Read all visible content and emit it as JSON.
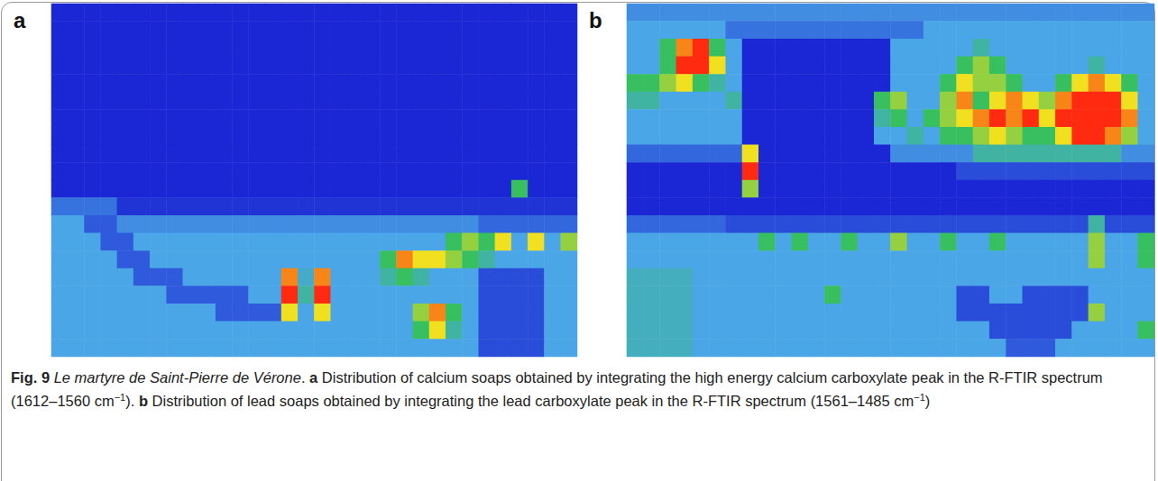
{
  "chart_data": [
    {
      "type": "heatmap",
      "panel": "a",
      "label": "Calcium carboxylates",
      "tick_labels": false,
      "zlim": [
        0,
        4
      ],
      "colors": [
        "#1b27d4",
        "#4aa6e6",
        "#38c060",
        "#f0e020",
        "#ff2a10"
      ],
      "cells": [
        [
          0,
          0,
          0,
          0,
          0,
          0,
          0,
          0,
          0,
          0,
          0,
          0,
          0,
          0,
          0,
          0,
          0,
          0,
          0,
          0,
          0,
          0,
          0,
          0,
          0,
          0,
          0,
          0,
          0,
          0,
          0,
          0
        ],
        [
          0,
          0,
          0,
          0,
          0,
          0,
          0,
          0,
          0,
          0,
          0,
          0,
          0,
          0,
          0,
          0,
          0,
          0,
          0,
          0,
          0,
          0,
          0,
          0,
          0,
          0,
          0,
          0,
          0,
          0,
          0,
          0
        ],
        [
          0,
          0,
          0,
          0,
          0,
          0,
          0,
          0,
          0,
          0,
          0,
          0,
          0,
          0,
          0,
          0,
          0,
          0,
          0,
          0,
          0,
          0,
          0,
          0,
          0,
          0,
          0,
          0,
          0,
          0,
          0,
          0
        ],
        [
          0,
          0,
          0,
          0,
          0,
          0,
          0,
          0,
          0,
          0,
          0,
          0,
          0,
          0,
          0,
          0,
          0,
          0,
          0,
          0,
          0,
          0,
          0,
          0,
          0,
          0,
          0,
          0,
          0,
          0,
          0,
          0
        ],
        [
          0,
          0,
          0,
          0,
          0,
          0,
          0,
          0,
          0,
          0,
          0,
          0,
          0,
          0,
          0,
          0,
          0,
          0,
          0,
          0,
          0,
          0,
          0,
          0,
          0,
          0,
          0,
          0,
          0,
          0,
          0,
          0
        ],
        [
          0,
          0,
          0,
          0,
          0,
          0,
          0,
          0,
          0,
          0,
          0,
          0,
          0,
          0,
          0,
          0,
          0,
          0,
          0,
          0,
          0,
          0,
          0,
          0,
          0,
          0,
          0,
          0,
          0,
          0,
          0,
          0
        ],
        [
          0,
          0,
          0,
          0,
          0,
          0,
          0,
          0,
          0,
          0,
          0,
          0,
          0,
          0,
          0,
          0,
          0,
          0,
          0,
          0,
          0,
          0,
          0,
          0,
          0,
          0,
          0,
          0,
          0,
          0,
          0,
          0
        ],
        [
          0,
          0,
          0,
          0,
          0,
          0,
          0,
          0,
          0,
          0,
          0,
          0,
          0,
          0,
          0,
          0,
          0,
          0,
          0,
          0,
          0,
          0,
          0,
          0,
          0,
          0,
          0,
          0,
          0,
          0,
          0,
          0
        ],
        [
          0,
          0,
          0,
          0,
          0,
          0,
          0,
          0,
          0,
          0,
          0,
          0,
          0,
          0,
          0,
          0,
          0,
          0,
          0,
          0,
          0,
          0,
          0,
          0,
          0,
          0,
          0,
          0,
          0,
          0,
          0,
          0
        ],
        [
          0,
          0,
          0,
          0,
          0,
          0,
          0,
          0,
          0,
          0,
          0,
          0,
          0,
          0,
          0,
          0,
          0,
          0,
          0,
          0,
          0,
          0,
          0,
          0,
          0,
          0,
          0,
          0,
          0,
          0,
          0,
          0
        ],
        [
          0,
          0,
          0,
          0,
          0,
          0,
          0,
          0,
          0,
          0,
          0,
          0,
          0,
          0,
          0,
          0,
          0,
          0,
          0,
          0,
          0,
          0,
          0,
          0,
          0,
          0,
          0,
          0,
          2,
          0,
          0,
          0
        ],
        [
          0.6,
          0.6,
          0.6,
          0.6,
          0.1,
          0.1,
          0.1,
          0.1,
          0.1,
          0.1,
          0.1,
          0.1,
          0.1,
          0.1,
          0.1,
          0.1,
          0.1,
          0.1,
          0.1,
          0.1,
          0.1,
          0.1,
          0.1,
          0.1,
          0.1,
          0.1,
          0.1,
          0.1,
          0.1,
          0.1,
          0.1,
          0.1
        ],
        [
          1,
          1,
          0.4,
          0.4,
          0.8,
          0.8,
          0.8,
          0.8,
          0.8,
          0.8,
          0.8,
          0.8,
          0.8,
          0.8,
          0.8,
          0.8,
          0.8,
          0.8,
          0.8,
          0.8,
          0.8,
          0.8,
          0.8,
          0.8,
          0.8,
          0.8,
          0.5,
          0.5,
          0.5,
          0.5,
          0.5,
          0.5
        ],
        [
          1,
          1,
          1,
          0.4,
          0.4,
          1,
          1,
          1,
          1,
          1,
          1,
          1,
          1,
          1,
          1,
          1,
          1,
          1,
          1,
          1,
          1,
          1,
          1,
          1,
          2,
          2.5,
          2,
          3,
          1,
          3,
          1,
          2.5
        ],
        [
          1,
          1,
          1,
          1,
          0.4,
          0.4,
          1,
          1,
          1,
          1,
          1,
          1,
          1,
          1,
          1,
          1,
          1,
          1,
          1,
          1,
          2,
          3.5,
          3,
          3,
          2.5,
          2,
          1.5,
          1,
          1,
          1,
          1,
          1
        ],
        [
          1,
          1,
          1,
          1,
          1,
          0.4,
          0.4,
          0.4,
          1,
          1,
          1,
          1,
          1,
          1,
          3.5,
          1.2,
          3.5,
          1,
          1,
          1,
          1.5,
          2,
          1.5,
          1,
          1,
          1,
          0.3,
          0.3,
          0.3,
          0.3,
          1,
          1
        ],
        [
          1,
          1,
          1,
          1,
          1,
          1,
          1,
          0.4,
          0.4,
          0.4,
          0.4,
          0.4,
          1,
          1,
          4,
          1.5,
          4,
          1,
          1,
          1,
          1,
          1,
          1,
          1,
          1,
          1,
          0.3,
          0.3,
          0.3,
          0.3,
          1,
          1
        ],
        [
          1,
          1,
          1,
          1,
          1,
          1,
          1,
          1,
          1,
          1,
          0.4,
          0.4,
          0.4,
          0.4,
          3,
          1,
          3,
          1,
          1,
          1,
          1,
          1,
          2.5,
          3.5,
          2,
          1,
          0.3,
          0.3,
          0.3,
          0.3,
          1,
          1
        ],
        [
          1,
          1,
          1,
          1,
          1,
          1,
          1,
          1,
          1,
          1,
          1,
          1,
          1,
          1,
          1,
          1,
          1,
          1,
          1,
          1,
          1,
          1,
          2,
          3,
          1.5,
          1,
          0.3,
          0.3,
          0.3,
          0.3,
          1,
          1
        ],
        [
          1,
          1,
          1,
          1,
          1,
          1,
          1,
          1,
          1,
          1,
          1,
          1,
          1,
          1,
          1,
          1,
          1,
          1,
          1,
          1,
          1,
          1,
          1,
          1,
          1,
          1,
          0.3,
          0.3,
          0.3,
          0.3,
          1,
          1
        ]
      ]
    },
    {
      "type": "heatmap",
      "panel": "b",
      "label": "Lead carboxylates",
      "tick_labels": false,
      "zlim": [
        0,
        4
      ],
      "colors": [
        "#1b27d4",
        "#4aa6e6",
        "#38c060",
        "#f0e020",
        "#ff2a10"
      ],
      "cells": [
        [
          0.8,
          0.8,
          0.8,
          0.8,
          0.8,
          0.8,
          0.8,
          0.8,
          0.8,
          0.8,
          0.8,
          0.8,
          0.8,
          0.8,
          0.8,
          0.8,
          0.8,
          0.8,
          0.8,
          0.8,
          0.8,
          0.8,
          0.8,
          0.8,
          0.8,
          0.8,
          0.8,
          0.8,
          0.8,
          0.8,
          0.8,
          0.8
        ],
        [
          1,
          1,
          1,
          1,
          1,
          1,
          0.6,
          0.6,
          0.6,
          0.6,
          0.6,
          0.6,
          0.6,
          0.6,
          0.6,
          0.6,
          0.6,
          0.6,
          1,
          1,
          1,
          1,
          1,
          1,
          1,
          1,
          1,
          1,
          1,
          1,
          1,
          1
        ],
        [
          1,
          1,
          2,
          3.5,
          4,
          2,
          1,
          0,
          0,
          0,
          0,
          0,
          0,
          0,
          0,
          0,
          1,
          1,
          1,
          1,
          1,
          1.5,
          1,
          1,
          1,
          1,
          1,
          1,
          1,
          1,
          1,
          1
        ],
        [
          1,
          1,
          2,
          4,
          4,
          3,
          1,
          0,
          0,
          0,
          0,
          0,
          0,
          0,
          0,
          0,
          1,
          1,
          1,
          1,
          2,
          2.5,
          2,
          1,
          1,
          1,
          1,
          1,
          1.5,
          1,
          1,
          1
        ],
        [
          2,
          2,
          2.5,
          3,
          2,
          1.5,
          1,
          0,
          0,
          0,
          0,
          0,
          0,
          0,
          0,
          0,
          1,
          1,
          1,
          2,
          3,
          2.5,
          2.5,
          2,
          1,
          1,
          2,
          3,
          3.5,
          3,
          2,
          1
        ],
        [
          1.5,
          1.5,
          1,
          1,
          1,
          1,
          1.5,
          0,
          0,
          0,
          0,
          0,
          0,
          0,
          0,
          2,
          2.5,
          1,
          1,
          2.5,
          3.5,
          2,
          3,
          3.5,
          3,
          2.5,
          3.5,
          4,
          4,
          4,
          3,
          1
        ],
        [
          1,
          1,
          1,
          1,
          1,
          1,
          1,
          0,
          0,
          0,
          0,
          0,
          0,
          0,
          0,
          1.5,
          2,
          1,
          2,
          2.5,
          3,
          3.5,
          4,
          3.5,
          4,
          3,
          4,
          4,
          4,
          4,
          3.5,
          1
        ],
        [
          1,
          1,
          1,
          1,
          1,
          1,
          1,
          0,
          0,
          0,
          0,
          0,
          0,
          0,
          0,
          1,
          1,
          1.5,
          1,
          2,
          2,
          2.5,
          3,
          2.5,
          2,
          2,
          3,
          4,
          4,
          3.5,
          2.5,
          1
        ],
        [
          0.5,
          0.5,
          0.5,
          0.5,
          0.5,
          0.5,
          0.5,
          3,
          0,
          0,
          0,
          0,
          0,
          0,
          0,
          0,
          0.8,
          0.8,
          0.8,
          0.8,
          0.8,
          1.5,
          1.5,
          1.5,
          1.5,
          1.5,
          1.5,
          1.5,
          1.5,
          1.5,
          0.8,
          0.8
        ],
        [
          0,
          0,
          0,
          0,
          0,
          0,
          0,
          4,
          0,
          0,
          0,
          0,
          0,
          0,
          0,
          0,
          0,
          0,
          0,
          0,
          0.3,
          0.3,
          0.3,
          0.3,
          0.3,
          0.3,
          0.3,
          0.3,
          0.3,
          0.3,
          0.3,
          0.3
        ],
        [
          0,
          0,
          0,
          0,
          0,
          0,
          0,
          2.5,
          0,
          0,
          0,
          0,
          0,
          0,
          0,
          0,
          0,
          0,
          0,
          0,
          0,
          0,
          0,
          0,
          0,
          0,
          0,
          0,
          0,
          0,
          0,
          0
        ],
        [
          0,
          0,
          0,
          0,
          0,
          0,
          0,
          0,
          0,
          0,
          0,
          0,
          0,
          0,
          0,
          0,
          0,
          0,
          0,
          0,
          0,
          0,
          0,
          0,
          0,
          0,
          0,
          0,
          0,
          0,
          0,
          0
        ],
        [
          0.5,
          0.5,
          0.5,
          0.5,
          0.5,
          0.5,
          0.3,
          0.3,
          0.3,
          0.3,
          0.3,
          0.3,
          0.3,
          0.3,
          0.3,
          0.3,
          0.3,
          0.3,
          0.3,
          0.3,
          0.3,
          0.3,
          0.3,
          0.3,
          0.3,
          0.3,
          0.3,
          0.3,
          1.5,
          0.3,
          0.3,
          0.3
        ],
        [
          1,
          1,
          1,
          1,
          1,
          1,
          1,
          1,
          2,
          1,
          2,
          1,
          1,
          2,
          1,
          1,
          2.5,
          1,
          1,
          2,
          1,
          1,
          2,
          1,
          1,
          1,
          1,
          1,
          2.5,
          1,
          1,
          2
        ],
        [
          1,
          1,
          1,
          1,
          1,
          1,
          1,
          1,
          1,
          1,
          1,
          1,
          1,
          1,
          1,
          1,
          1,
          1,
          1,
          1,
          1,
          1,
          1,
          1,
          1,
          1,
          1,
          1,
          2.5,
          1,
          1,
          2
        ],
        [
          1.3,
          1.3,
          1.3,
          1.3,
          1,
          1,
          1,
          1,
          1,
          1,
          1,
          1,
          1,
          1,
          1,
          1,
          1,
          1,
          1,
          1,
          1,
          1,
          1,
          1,
          1,
          1,
          1,
          1,
          1,
          1,
          1,
          1
        ],
        [
          1.3,
          1.3,
          1.3,
          1.3,
          1,
          1,
          1,
          1,
          1,
          1,
          1,
          1,
          2,
          1,
          1,
          1,
          1,
          1,
          1,
          1,
          0.3,
          0.3,
          1,
          1,
          0.3,
          0.3,
          0.3,
          0.3,
          1,
          1,
          1,
          1
        ],
        [
          1.3,
          1.3,
          1.3,
          1.3,
          1,
          1,
          1,
          1,
          1,
          1,
          1,
          1,
          1,
          1,
          1,
          1,
          1,
          1,
          1,
          1,
          0.3,
          0.3,
          0.3,
          0.3,
          0.3,
          0.3,
          0.3,
          0.3,
          2.5,
          1,
          1,
          1
        ],
        [
          1.3,
          1.3,
          1.3,
          1.3,
          1,
          1,
          1,
          1,
          1,
          1,
          1,
          1,
          1,
          1,
          1,
          1,
          1,
          1,
          1,
          1,
          1,
          1,
          0.3,
          0.3,
          0.3,
          0.3,
          0.3,
          1,
          1,
          1,
          1,
          2
        ],
        [
          1.3,
          1.3,
          1.3,
          1.3,
          1,
          1,
          1,
          1,
          1,
          1,
          1,
          1,
          1,
          1,
          1,
          1,
          1,
          1,
          1,
          1,
          1,
          1,
          1,
          0.4,
          0.4,
          0.4,
          1,
          1,
          1,
          1,
          1,
          1
        ]
      ]
    }
  ],
  "caption": [
    {
      "text": "Fig. 9",
      "style": "bold"
    },
    {
      "text": " Le martyre de Saint-Pierre de Vérone",
      "style": "italic"
    },
    {
      "text": ". ",
      "style": "plain"
    },
    {
      "text": "a",
      "style": "bold"
    },
    {
      "text": " Distribution of calcium soaps obtained by integrating the high energy calcium carboxylate peak in the R-FTIR spectrum (1612–1560 cm",
      "style": "plain"
    },
    {
      "text": "−1",
      "style": "sup"
    },
    {
      "text": "). ",
      "style": "plain"
    },
    {
      "text": "b",
      "style": "bold"
    },
    {
      "text": " Distribution of lead soaps obtained by integrating the lead carboxylate peak in the R-FTIR spectrum (1561–1485 cm",
      "style": "plain"
    },
    {
      "text": "−1",
      "style": "sup"
    },
    {
      "text": ")",
      "style": "plain"
    }
  ]
}
